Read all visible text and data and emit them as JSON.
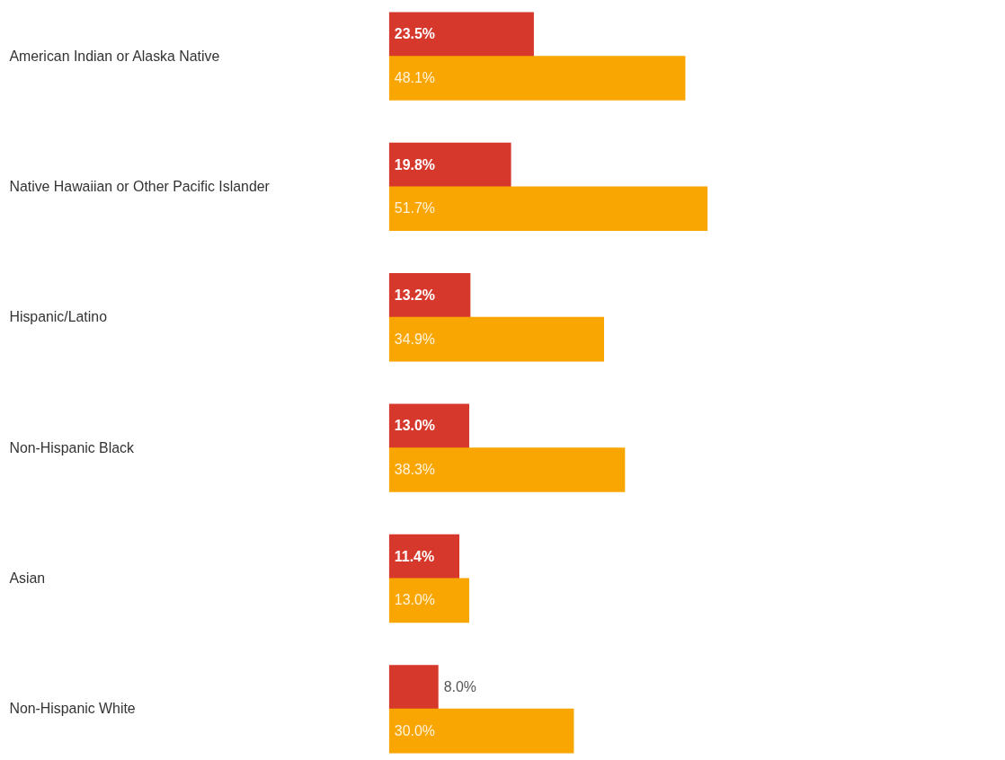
{
  "chart_data": {
    "type": "bar",
    "orientation": "horizontal",
    "categories": [
      "American Indian or Alaska Native",
      "Native Hawaiian or Other Pacific Islander",
      "Hispanic/Latino",
      "Non-Hispanic Black",
      "Asian",
      "Non-Hispanic White"
    ],
    "series": [
      {
        "color": "#d6382c",
        "values": [
          23.5,
          19.8,
          13.2,
          13.0,
          11.4,
          8.0
        ],
        "value_labels": [
          "23.5%",
          "19.8%",
          "13.2%",
          "13.0%",
          "11.4%",
          "8.0%"
        ]
      },
      {
        "color": "#f9a602",
        "values": [
          48.1,
          51.7,
          34.9,
          38.3,
          13.0,
          30.0
        ],
        "value_labels": [
          "48.1%",
          "51.7%",
          "34.9%",
          "38.3%",
          "13.0%",
          "30.0%"
        ]
      }
    ],
    "xlim": [
      0,
      100
    ],
    "tick_labels": false
  }
}
